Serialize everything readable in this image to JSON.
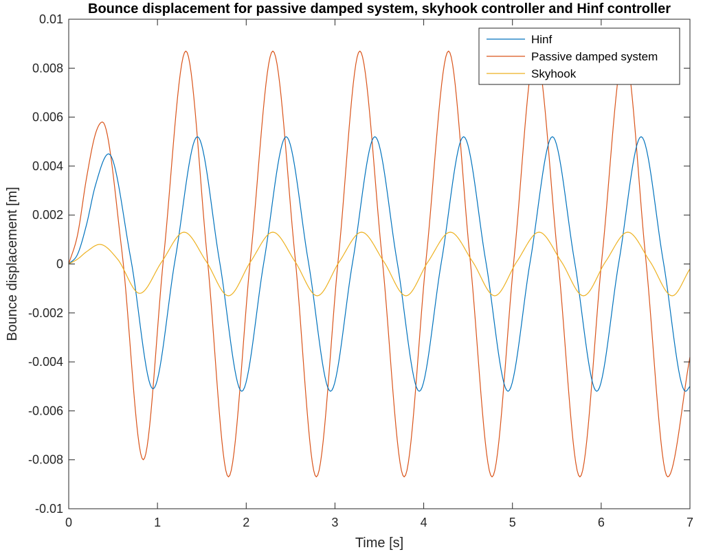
{
  "chart_data": {
    "type": "line",
    "title": "Bounce displacement for passive damped system, skyhook controller and Hinf controller",
    "xlabel": "Time [s]",
    "ylabel": "Bounce displacement [m]",
    "xlim": [
      0,
      7
    ],
    "ylim": [
      -0.01,
      0.01
    ],
    "xticks": [
      0,
      1,
      2,
      3,
      4,
      5,
      6,
      7
    ],
    "xtick_labels": [
      "0",
      "1",
      "2",
      "3",
      "4",
      "5",
      "6",
      "7"
    ],
    "yticks": [
      -0.01,
      -0.008,
      -0.006,
      -0.004,
      -0.002,
      0,
      0.002,
      0.004,
      0.006,
      0.008,
      0.01
    ],
    "ytick_labels": [
      "-0.01",
      "-0.008",
      "-0.006",
      "-0.004",
      "-0.002",
      "0",
      "0.002",
      "0.004",
      "0.006",
      "0.008",
      "0.01"
    ],
    "grid": false,
    "legend_position": "top-right",
    "series": [
      {
        "name": "Hinf",
        "color": "#0072BD",
        "x": [
          0,
          0.1,
          0.2,
          0.3,
          0.45,
          0.7,
          0.95,
          1.2,
          1.45,
          1.7,
          1.95,
          2.2,
          2.45,
          2.7,
          2.95,
          3.2,
          3.45,
          3.7,
          3.95,
          4.2,
          4.45,
          4.7,
          4.95,
          5.2,
          5.45,
          5.7,
          5.95,
          6.2,
          6.45,
          6.7,
          6.95,
          7.0
        ],
        "y": [
          0,
          0.0004,
          0.0016,
          0.0032,
          0.0045,
          0.0002,
          -0.0051,
          0.0002,
          0.0052,
          0.0001,
          -0.0052,
          0.0001,
          0.0052,
          0.0001,
          -0.0052,
          0.0001,
          0.0052,
          0.0001,
          -0.0052,
          0.0001,
          0.0052,
          0.0001,
          -0.0052,
          0.0001,
          0.0052,
          0.0001,
          -0.0052,
          0.0001,
          0.0052,
          0.0001,
          -0.0052,
          -0.005
        ]
      },
      {
        "name": "Passive damped system",
        "color": "#D95319",
        "x": [
          0,
          0.1,
          0.2,
          0.3,
          0.38,
          0.6,
          0.84,
          1.07,
          1.32,
          1.56,
          1.8,
          2.05,
          2.3,
          2.55,
          2.79,
          3.04,
          3.28,
          3.53,
          3.78,
          4.03,
          4.28,
          4.52,
          4.77,
          5.02,
          5.26,
          5.51,
          5.76,
          6.01,
          6.26,
          6.5,
          6.75,
          7.0
        ],
        "y": [
          0,
          0.0012,
          0.0035,
          0.0053,
          0.0058,
          0.0005,
          -0.008,
          0.0003,
          0.0087,
          0.0003,
          -0.0087,
          0.0003,
          0.0087,
          0.0003,
          -0.0087,
          0.0003,
          0.0087,
          0.0003,
          -0.0087,
          0.0003,
          0.0087,
          0.0003,
          -0.0087,
          0.0003,
          0.0087,
          0.0003,
          -0.0087,
          0.0003,
          0.0087,
          0.0003,
          -0.0087,
          -0.0038
        ]
      },
      {
        "name": "Skyhook",
        "color": "#EDB120",
        "x": [
          0,
          0.1,
          0.2,
          0.35,
          0.55,
          0.8,
          1.05,
          1.3,
          1.55,
          1.8,
          2.05,
          2.3,
          2.55,
          2.8,
          3.05,
          3.3,
          3.55,
          3.8,
          4.05,
          4.3,
          4.55,
          4.8,
          5.05,
          5.3,
          5.55,
          5.8,
          6.05,
          6.3,
          6.55,
          6.8,
          7.0
        ],
        "y": [
          0,
          0.0002,
          0.0005,
          0.0008,
          0.0002,
          -0.0012,
          0.0001,
          0.0013,
          0.0001,
          -0.0013,
          0.0001,
          0.0013,
          0.0001,
          -0.0013,
          0.0001,
          0.0013,
          0.0001,
          -0.0013,
          0.0001,
          0.0013,
          0.0001,
          -0.0013,
          0.0001,
          0.0013,
          0.0001,
          -0.0013,
          0.0001,
          0.0013,
          0.0001,
          -0.0013,
          -0.0002
        ]
      }
    ]
  }
}
